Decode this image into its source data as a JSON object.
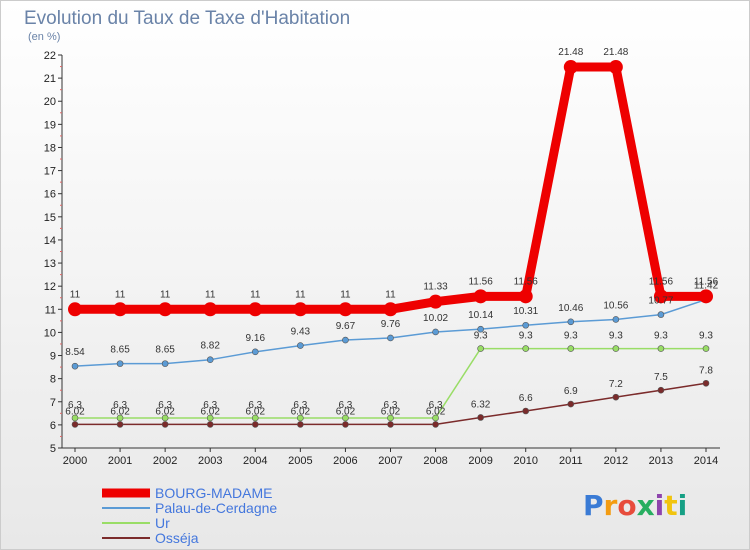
{
  "chart_data": {
    "type": "line",
    "title": "Evolution du Taux de Taxe d'Habitation",
    "subtitle": "(en %)",
    "x": [
      "2000",
      "2001",
      "2002",
      "2003",
      "2004",
      "2005",
      "2006",
      "2007",
      "2008",
      "2009",
      "2010",
      "2011",
      "2012",
      "2013",
      "2014"
    ],
    "ylim": [
      5,
      22
    ],
    "yticks": [
      5,
      6,
      7,
      8,
      9,
      10,
      11,
      12,
      13,
      14,
      15,
      16,
      17,
      18,
      19,
      20,
      21,
      22
    ],
    "grid": false,
    "legend_position": "bottom-left",
    "series": [
      {
        "name": "BOURG-MADAME",
        "color": "#ee0000",
        "values": [
          11,
          11,
          11,
          11,
          11,
          11,
          11,
          11,
          11.33,
          11.56,
          11.56,
          21.48,
          21.48,
          11.56,
          11.56
        ],
        "labels": [
          "11",
          "11",
          "11",
          "11",
          "11",
          "11",
          "11",
          "11",
          "11.33",
          "11.56",
          "11.56",
          "21.48",
          "21.48",
          "11.56",
          "11.56"
        ]
      },
      {
        "name": "Palau-de-Cerdagne",
        "color": "#5b9bd5",
        "values": [
          8.54,
          8.65,
          8.65,
          8.82,
          9.16,
          9.43,
          9.67,
          9.76,
          10.02,
          10.14,
          10.31,
          10.46,
          10.56,
          10.77,
          11.42
        ],
        "labels": [
          "8.54",
          "8.65",
          "8.65",
          "8.82",
          "9.16",
          "9.43",
          "9.67",
          "9.76",
          "10.02",
          "10.14",
          "10.31",
          "10.46",
          "10.56",
          "10.77",
          "11.42"
        ]
      },
      {
        "name": "Ur",
        "color": "#99dd66",
        "values": [
          6.3,
          6.3,
          6.3,
          6.3,
          6.3,
          6.3,
          6.3,
          6.3,
          6.3,
          9.3,
          9.3,
          9.3,
          9.3,
          9.3,
          9.3
        ],
        "labels": [
          "6.3",
          "6.3",
          "6.3",
          "6.3",
          "6.3",
          "6.3",
          "6.3",
          "6.3",
          "6.3",
          "9.3",
          "9.3",
          "9.3",
          "9.3",
          "9.3",
          "9.3"
        ]
      },
      {
        "name": "Osséja",
        "color": "#7b2b2b",
        "values": [
          6.02,
          6.02,
          6.02,
          6.02,
          6.02,
          6.02,
          6.02,
          6.02,
          6.02,
          6.32,
          6.6,
          6.9,
          7.2,
          7.5,
          7.8
        ],
        "labels": [
          "6.02",
          "6.02",
          "6.02",
          "6.02",
          "6.02",
          "6.02",
          "6.02",
          "6.02",
          "6.02",
          "6.32",
          "6.6",
          "6.9",
          "7.2",
          "7.5",
          "7.8"
        ]
      }
    ]
  },
  "logo": {
    "text": "Proxiti",
    "letters": [
      "P",
      "r",
      "o",
      "x",
      "i",
      "t",
      "i"
    ],
    "colors": [
      "#3a7bd5",
      "#f39c12",
      "#e74c3c",
      "#27ae60",
      "#8e44ad",
      "#f1c40f",
      "#16a085"
    ]
  }
}
